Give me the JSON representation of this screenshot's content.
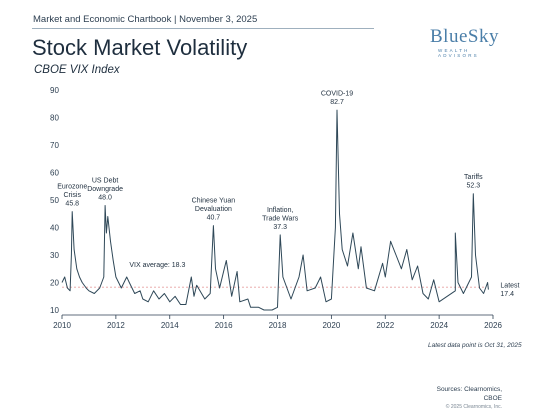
{
  "header": {
    "top_text": "Market and Economic Chartbook | November 3, 2025",
    "title": "Stock Market Volatility",
    "subtitle": "CBOE VIX Index"
  },
  "logo": {
    "main": "BlueSky",
    "sub": "WEALTH ADVISORS"
  },
  "footer": {
    "footnote": "Latest data point is Oct 31, 2025",
    "sources_line1": "Sources: Clearnomics,",
    "sources_line2": "CBOE",
    "copyright": "© 2025 Clearnomics, Inc."
  },
  "colors": {
    "line": "#2f4858",
    "average": "#e6a0a0",
    "accent": "#4a7ea8"
  },
  "chart_data": {
    "type": "line",
    "title": "Stock Market Volatility",
    "subtitle": "CBOE VIX Index",
    "xlim": [
      2010,
      2026
    ],
    "ylim": [
      10,
      90
    ],
    "x_ticks": [
      "2010",
      "2012",
      "2014",
      "2016",
      "2018",
      "2020",
      "2022",
      "2024",
      "2026"
    ],
    "y_ticks": [
      "10",
      "20",
      "30",
      "40",
      "50",
      "60",
      "70",
      "80",
      "90"
    ],
    "grid": false,
    "average": {
      "label": "VIX average: 18.3",
      "value": 18.3
    },
    "series": [
      {
        "points": [
          [
            2010.0,
            20
          ],
          [
            2010.1,
            22
          ],
          [
            2010.2,
            18
          ],
          [
            2010.3,
            17
          ],
          [
            2010.35,
            30
          ],
          [
            2010.38,
            45.8
          ],
          [
            2010.45,
            32
          ],
          [
            2010.55,
            25
          ],
          [
            2010.65,
            22
          ],
          [
            2010.75,
            20
          ],
          [
            2010.9,
            18
          ],
          [
            2011.0,
            17
          ],
          [
            2011.2,
            16
          ],
          [
            2011.4,
            18
          ],
          [
            2011.55,
            22
          ],
          [
            2011.6,
            48.0
          ],
          [
            2011.65,
            38
          ],
          [
            2011.7,
            44
          ],
          [
            2011.8,
            35
          ],
          [
            2011.9,
            28
          ],
          [
            2012.0,
            22
          ],
          [
            2012.2,
            18
          ],
          [
            2012.4,
            22
          ],
          [
            2012.5,
            20
          ],
          [
            2012.7,
            16
          ],
          [
            2012.9,
            17
          ],
          [
            2013.0,
            14
          ],
          [
            2013.2,
            13
          ],
          [
            2013.4,
            17
          ],
          [
            2013.6,
            14
          ],
          [
            2013.8,
            16
          ],
          [
            2014.0,
            13
          ],
          [
            2014.2,
            15
          ],
          [
            2014.4,
            12
          ],
          [
            2014.6,
            12
          ],
          [
            2014.8,
            22
          ],
          [
            2014.9,
            15
          ],
          [
            2015.0,
            19
          ],
          [
            2015.3,
            14
          ],
          [
            2015.5,
            16
          ],
          [
            2015.62,
            40.7
          ],
          [
            2015.7,
            25
          ],
          [
            2015.85,
            18
          ],
          [
            2016.0,
            24
          ],
          [
            2016.1,
            28
          ],
          [
            2016.3,
            15
          ],
          [
            2016.5,
            24
          ],
          [
            2016.6,
            13
          ],
          [
            2016.9,
            14
          ],
          [
            2017.0,
            11
          ],
          [
            2017.3,
            11
          ],
          [
            2017.5,
            10
          ],
          [
            2017.8,
            10
          ],
          [
            2018.0,
            11
          ],
          [
            2018.1,
            37.3
          ],
          [
            2018.2,
            22
          ],
          [
            2018.5,
            14
          ],
          [
            2018.8,
            22
          ],
          [
            2018.95,
            30
          ],
          [
            2019.1,
            17
          ],
          [
            2019.4,
            18
          ],
          [
            2019.6,
            22
          ],
          [
            2019.8,
            13
          ],
          [
            2020.0,
            14
          ],
          [
            2020.15,
            40
          ],
          [
            2020.21,
            82.7
          ],
          [
            2020.3,
            45
          ],
          [
            2020.4,
            32
          ],
          [
            2020.6,
            26
          ],
          [
            2020.8,
            38
          ],
          [
            2021.0,
            25
          ],
          [
            2021.1,
            33
          ],
          [
            2021.3,
            18
          ],
          [
            2021.6,
            17
          ],
          [
            2021.9,
            27
          ],
          [
            2022.0,
            22
          ],
          [
            2022.2,
            35
          ],
          [
            2022.4,
            30
          ],
          [
            2022.6,
            25
          ],
          [
            2022.8,
            32
          ],
          [
            2023.0,
            21
          ],
          [
            2023.2,
            26
          ],
          [
            2023.4,
            16
          ],
          [
            2023.6,
            14
          ],
          [
            2023.8,
            21
          ],
          [
            2024.0,
            13
          ],
          [
            2024.3,
            15
          ],
          [
            2024.6,
            17
          ],
          [
            2024.6,
            38
          ],
          [
            2024.7,
            20
          ],
          [
            2024.9,
            16
          ],
          [
            2025.0,
            18
          ],
          [
            2025.2,
            22
          ],
          [
            2025.27,
            52.3
          ],
          [
            2025.35,
            30
          ],
          [
            2025.5,
            18
          ],
          [
            2025.65,
            16
          ],
          [
            2025.8,
            20
          ],
          [
            2025.83,
            17.4
          ]
        ]
      }
    ],
    "annotations": [
      {
        "lines": [
          "Eurozone",
          "Crisis",
          "45.8"
        ],
        "x": 2010.38,
        "y": 45.8
      },
      {
        "lines": [
          "US Debt",
          "Downgrade",
          "48.0"
        ],
        "x": 2011.6,
        "y": 48.0
      },
      {
        "lines": [
          "Chinese Yuan",
          "Devaluation",
          "40.7"
        ],
        "x": 2015.62,
        "y": 40.7
      },
      {
        "lines": [
          "Inflation,",
          "Trade Wars",
          "37.3"
        ],
        "x": 2018.1,
        "y": 37.3
      },
      {
        "lines": [
          "COVID-19",
          "82.7"
        ],
        "x": 2020.21,
        "y": 82.7
      },
      {
        "lines": [
          "Tariffs",
          "52.3"
        ],
        "x": 2025.27,
        "y": 52.3
      },
      {
        "lines": [
          "Latest",
          "17.4"
        ],
        "x": 2025.83,
        "y": 17.4
      }
    ]
  }
}
